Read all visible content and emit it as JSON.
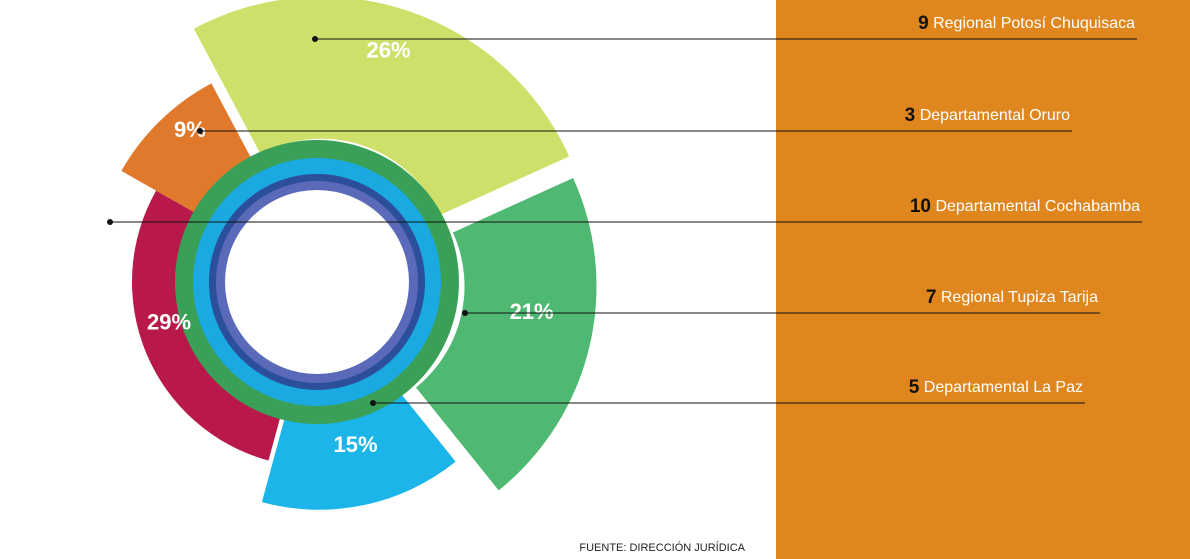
{
  "chart_data": {
    "type": "pie",
    "categories": [
      "Regional Potosí Chuquisaca",
      "Departamental Oruro",
      "Departamental Cochabamba",
      "Regional Tupiza Tarija",
      "Departamental La Paz"
    ],
    "counts": [
      9,
      3,
      10,
      7,
      5
    ],
    "values": [
      26,
      9,
      29,
      21,
      15
    ],
    "value_labels": [
      "26%",
      "9%",
      "29%",
      "21%",
      "15%"
    ],
    "colors": [
      "#cfe06a",
      "#e0792b",
      "#b8184a",
      "#4fb872",
      "#1bb5ea"
    ],
    "source": "FUENTE: DIRECCIÓN JURÍDICA"
  }
}
